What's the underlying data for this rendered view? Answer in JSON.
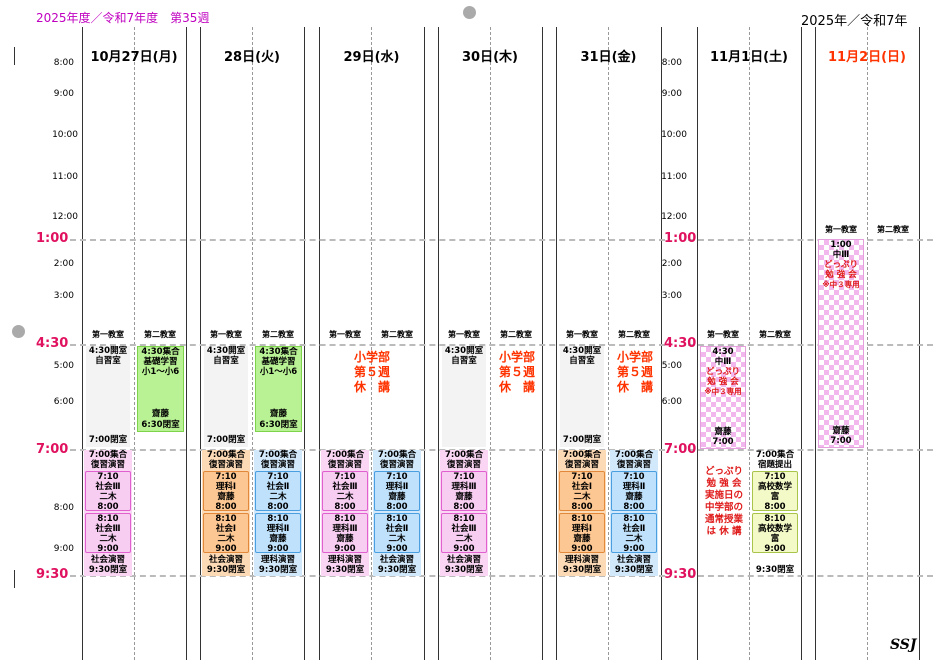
{
  "header": {
    "fiscal_title": "2025年度／令和7年度　第35週",
    "year_title": "2025年／令和7年"
  },
  "colors": {
    "title_magenta": "#c000c0",
    "time_accent": "#e0115f",
    "sunday_red": "#ff3300",
    "notice_red": "#e01b1b"
  },
  "times": {
    "left": [
      "8:00",
      "9:00",
      "10:00",
      "11:00",
      "12:00",
      "2:00",
      "3:00",
      "5:00",
      "6:00",
      "8:00",
      "9:00"
    ],
    "mid": [
      "8:00",
      "9:00",
      "10:00",
      "11:00",
      "12:00",
      "2:00",
      "3:00",
      "5:00",
      "6:00"
    ],
    "big": [
      "1:00",
      "4:30",
      "7:00",
      "9:30"
    ]
  },
  "days": [
    "10月27日(月)",
    "28日(火)",
    "29日(水)",
    "30日(木)",
    "31日(金)",
    "11月1日(土)",
    "11月2日(日)"
  ],
  "rooms": {
    "room1": "第一教室",
    "room2": "第二教室"
  },
  "mon": {
    "r1_top": [
      "4:30開室",
      "自習室"
    ],
    "r1_bottom": "7:00閉室",
    "r2_top": [
      "4:30集合",
      "基礎学習",
      "小1～小6"
    ],
    "r2_bottom": [
      "齋藤",
      "6:30閉室"
    ],
    "eve1_top": [
      "7:00集合",
      "復習演習"
    ],
    "l1": [
      "7:10",
      "社会Ⅲ",
      "二木",
      "8:00"
    ],
    "l2": [
      "8:10",
      "社会Ⅲ",
      "二木",
      "9:00"
    ],
    "eve1_bottom": [
      "社会演習",
      "9:30閉室"
    ]
  },
  "tue": {
    "r1_top": [
      "4:30開室",
      "自習室"
    ],
    "r1_bottom": "7:00閉室",
    "r2_top": [
      "4:30集合",
      "基礎学習",
      "小1～小6"
    ],
    "r2_bottom": [
      "齋藤",
      "6:30閉室"
    ],
    "eve1_top": [
      "7:00集合",
      "復習演習"
    ],
    "l1": [
      "7:10",
      "理科Ⅰ",
      "齋藤",
      "8:00"
    ],
    "l2": [
      "8:10",
      "社会Ⅰ",
      "二木",
      "9:00"
    ],
    "eve1_bottom": [
      "社会演習",
      "9:30閉室"
    ],
    "eve2_top": [
      "7:00集合",
      "復習演習"
    ],
    "l3": [
      "7:10",
      "社会Ⅱ",
      "二木",
      "8:00"
    ],
    "l4": [
      "8:10",
      "理科Ⅱ",
      "齋藤",
      "9:00"
    ],
    "eve2_bottom": [
      "理科演習",
      "9:30閉室"
    ]
  },
  "wed": {
    "notice": [
      "小学部",
      "第５週",
      "休　講"
    ],
    "eve1_top": [
      "7:00集合",
      "復習演習"
    ],
    "l1": [
      "7:10",
      "社会Ⅲ",
      "二木",
      "8:00"
    ],
    "l2": [
      "8:10",
      "理科Ⅲ",
      "齋藤",
      "9:00"
    ],
    "eve1_bottom": [
      "理科演習",
      "9:30閉室"
    ],
    "eve2_top": [
      "7:00集合",
      "復習演習"
    ],
    "l3": [
      "7:10",
      "理科Ⅱ",
      "齋藤",
      "8:00"
    ],
    "l4": [
      "8:10",
      "社会Ⅱ",
      "二木",
      "9:00"
    ],
    "eve2_bottom": [
      "社会演習",
      "9:30閉室"
    ]
  },
  "thu": {
    "r1_top": [
      "4:30開室",
      "自習室"
    ],
    "notice": [
      "小学部",
      "第５週",
      "休　講"
    ],
    "eve1_top": [
      "7:00集合",
      "復習演習"
    ],
    "l1": [
      "7:10",
      "理科Ⅲ",
      "齋藤",
      "8:00"
    ],
    "l2": [
      "8:10",
      "社会Ⅲ",
      "二木",
      "9:00"
    ],
    "eve1_bottom": [
      "社会演習",
      "9:30閉室"
    ]
  },
  "fri": {
    "r1_top": [
      "4:30開室",
      "自習室"
    ],
    "r1_bottom": "7:00閉室",
    "notice": [
      "小学部",
      "第５週",
      "休　講"
    ],
    "eve1_top": [
      "7:00集合",
      "復習演習"
    ],
    "l1": [
      "7:10",
      "社会Ⅰ",
      "二木",
      "8:00"
    ],
    "l2": [
      "8:10",
      "理科Ⅰ",
      "齋藤",
      "9:00"
    ],
    "eve1_bottom": [
      "理科演習",
      "9:30閉室"
    ],
    "eve2_top": [
      "7:00集合",
      "復習演習"
    ],
    "l3": [
      "7:10",
      "理科Ⅱ",
      "齋藤",
      "8:00"
    ],
    "l4": [
      "8:10",
      "社会Ⅱ",
      "二木",
      "9:00"
    ],
    "eve2_bottom": [
      "社会演習",
      "9:30閉室"
    ]
  },
  "sat": {
    "special_top": [
      "4:30",
      "中Ⅲ"
    ],
    "special_red": [
      "どっぷり",
      "勉 強 会",
      "※中３専用"
    ],
    "special_bottom": [
      "齋藤",
      "7:00"
    ],
    "notice": [
      "どっぷり",
      "勉 強 会",
      "実施日の",
      "中学部の",
      "通常授業",
      "は 休 講"
    ],
    "eve2_top": [
      "7:00集合",
      "宿題提出"
    ],
    "l3": [
      "7:10",
      "高校数学",
      "富",
      "8:00"
    ],
    "l4": [
      "8:10",
      "高校数学",
      "富",
      "9:00"
    ],
    "eve2_bottom": "9:30閉室"
  },
  "sun": {
    "special_top": [
      "1:00",
      "中Ⅲ"
    ],
    "special_red": [
      "どっぷり",
      "勉 強 会",
      "※中３専用"
    ],
    "special_bottom": [
      "齋藤",
      "7:00"
    ]
  },
  "footer": {
    "mark": "SSJ"
  }
}
